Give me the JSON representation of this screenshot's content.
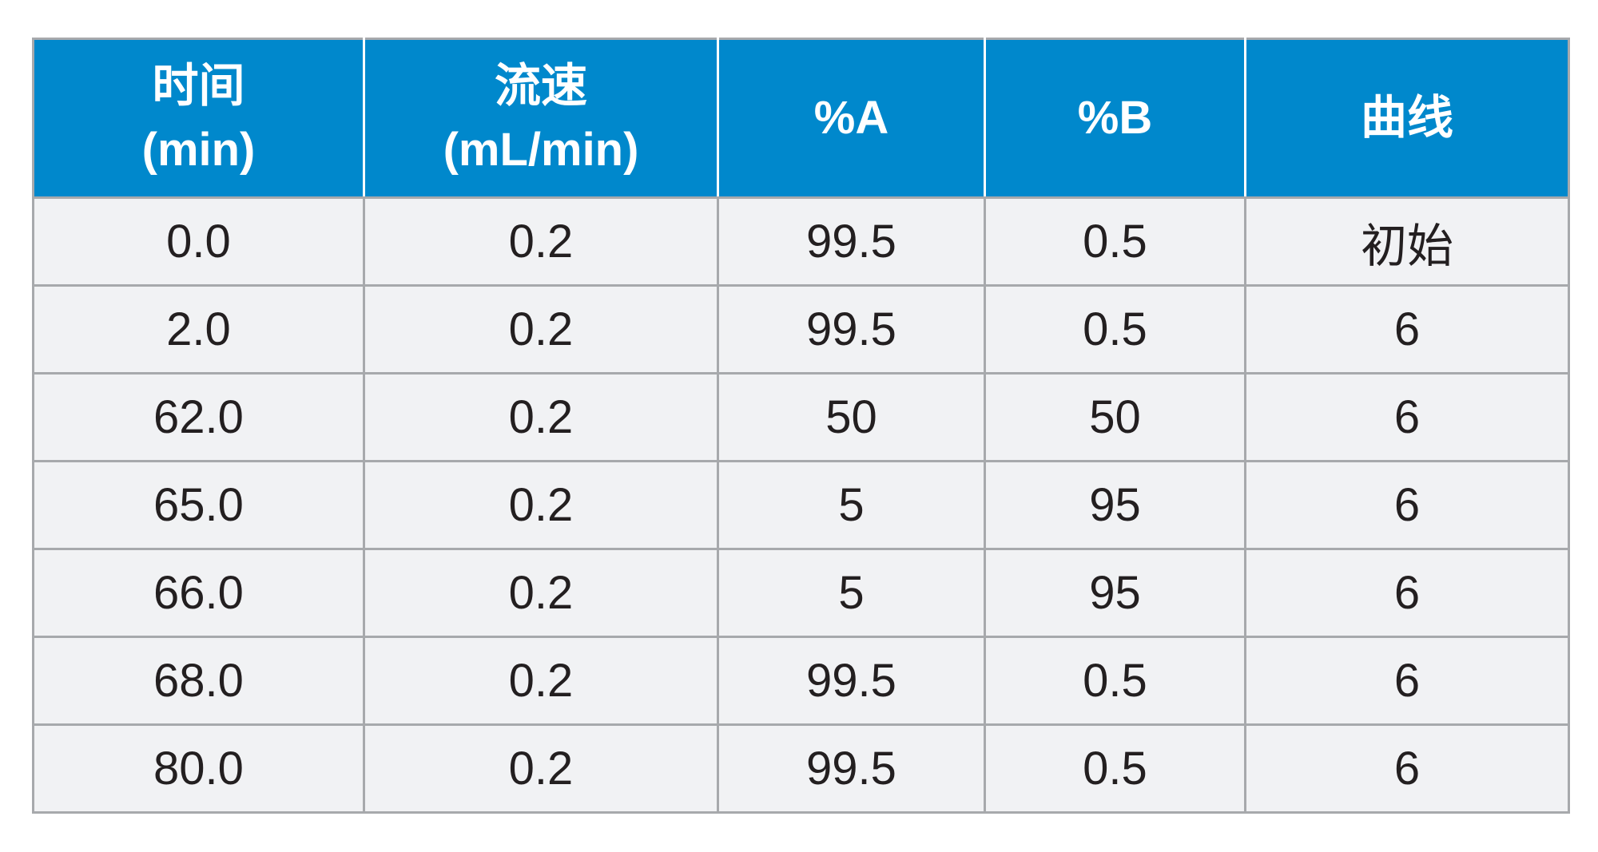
{
  "table": {
    "headers": [
      {
        "line1": "时间",
        "line2": "(min)"
      },
      {
        "line1": "流速",
        "line2": "(mL/min)"
      },
      {
        "line1": "%A",
        "line2": ""
      },
      {
        "line1": "%B",
        "line2": ""
      },
      {
        "line1": "曲线",
        "line2": ""
      }
    ],
    "rows": [
      [
        "0.0",
        "0.2",
        "99.5",
        "0.5",
        "初始"
      ],
      [
        "2.0",
        "0.2",
        "99.5",
        "0.5",
        "6"
      ],
      [
        "62.0",
        "0.2",
        "50",
        "50",
        "6"
      ],
      [
        "65.0",
        "0.2",
        "5",
        "95",
        "6"
      ],
      [
        "66.0",
        "0.2",
        "5",
        "95",
        "6"
      ],
      [
        "68.0",
        "0.2",
        "99.5",
        "0.5",
        "6"
      ],
      [
        "80.0",
        "0.2",
        "99.5",
        "0.5",
        "6"
      ]
    ],
    "colors": {
      "header_background": "#0088cc",
      "header_text": "#ffffff",
      "cell_background": "#f1f2f4",
      "cell_text": "#231f20",
      "border": "#a7a9ac"
    }
  }
}
